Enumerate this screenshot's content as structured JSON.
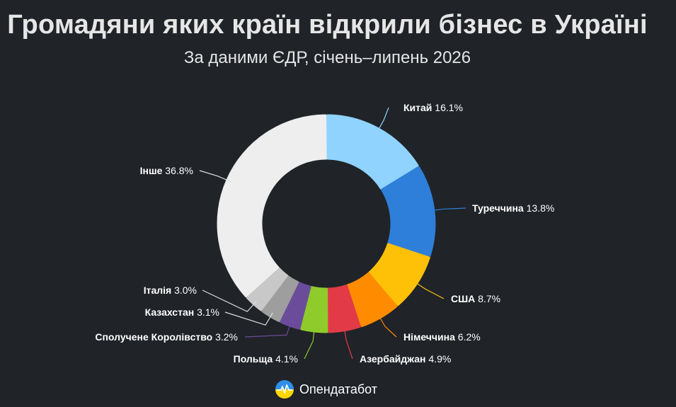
{
  "title": "Громадяни яких країн відкрили бізнес в Україні",
  "subtitle": "За даними ЄДР, січень–липень 2026",
  "brand": {
    "name": "Опендатабот",
    "icon": "opendatabot-logo-icon"
  },
  "chart_data": {
    "type": "pie",
    "donut": true,
    "title": "Громадяни яких країн відкрили бізнес в Україні",
    "subtitle": "За даними ЄДР, січень–липень 2026",
    "unit": "%",
    "slices": [
      {
        "label": "Китай",
        "value": 16.1,
        "color": "#8fd3fe"
      },
      {
        "label": "Туреччина",
        "value": 13.8,
        "color": "#2e7fd9"
      },
      {
        "label": "США",
        "value": 8.7,
        "color": "#ffc107"
      },
      {
        "label": "Німеччина",
        "value": 6.2,
        "color": "#ff8c00"
      },
      {
        "label": "Азербайджан",
        "value": 4.9,
        "color": "#e23b47"
      },
      {
        "label": "Польща",
        "value": 4.1,
        "color": "#8ecb2b"
      },
      {
        "label": "Сполучене Королівство",
        "value": 3.2,
        "color": "#6b4c9a"
      },
      {
        "label": "Казахстан",
        "value": 3.1,
        "color": "#9e9e9e"
      },
      {
        "label": "Італія",
        "value": 3.0,
        "color": "#c8c8c8"
      },
      {
        "label": "Інше",
        "value": 36.8,
        "color": "#eeeeee"
      }
    ]
  }
}
